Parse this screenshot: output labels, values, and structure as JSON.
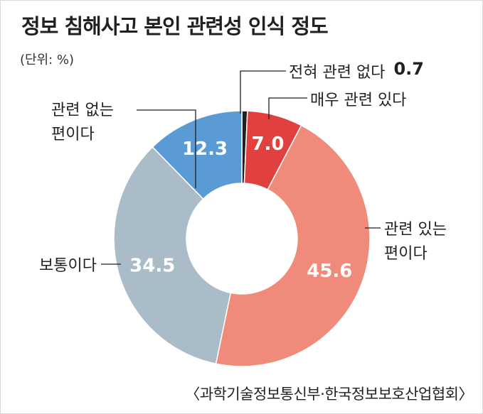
{
  "title": "정보 침해사고 본인 관련성 인식 정도",
  "unit": "(단위: %)",
  "source": "〈과학기술정보통신부·한국정보보호산업협회〉",
  "chart_data": {
    "type": "pie",
    "donut": true,
    "categories": [
      "전혀 관련 없다",
      "매우 관련 있다",
      "관련 있는 편이다",
      "보통이다",
      "관련 없는 편이다"
    ],
    "values": [
      0.7,
      7.0,
      45.6,
      34.5,
      12.3
    ],
    "value_labels": [
      "0.7",
      "7.0",
      "45.6",
      "34.5",
      "12.3"
    ],
    "label_lines": [
      [
        "전혀 관련 없다"
      ],
      [
        "매우 관련 있다"
      ],
      [
        "관련 있는",
        "편이다"
      ],
      [
        "보통이다"
      ],
      [
        "관련 없는",
        "편이다"
      ]
    ],
    "colors": [
      "#231f20",
      "#e0413f",
      "#f08a7b",
      "#a9bcc8",
      "#5b9bd5"
    ]
  }
}
